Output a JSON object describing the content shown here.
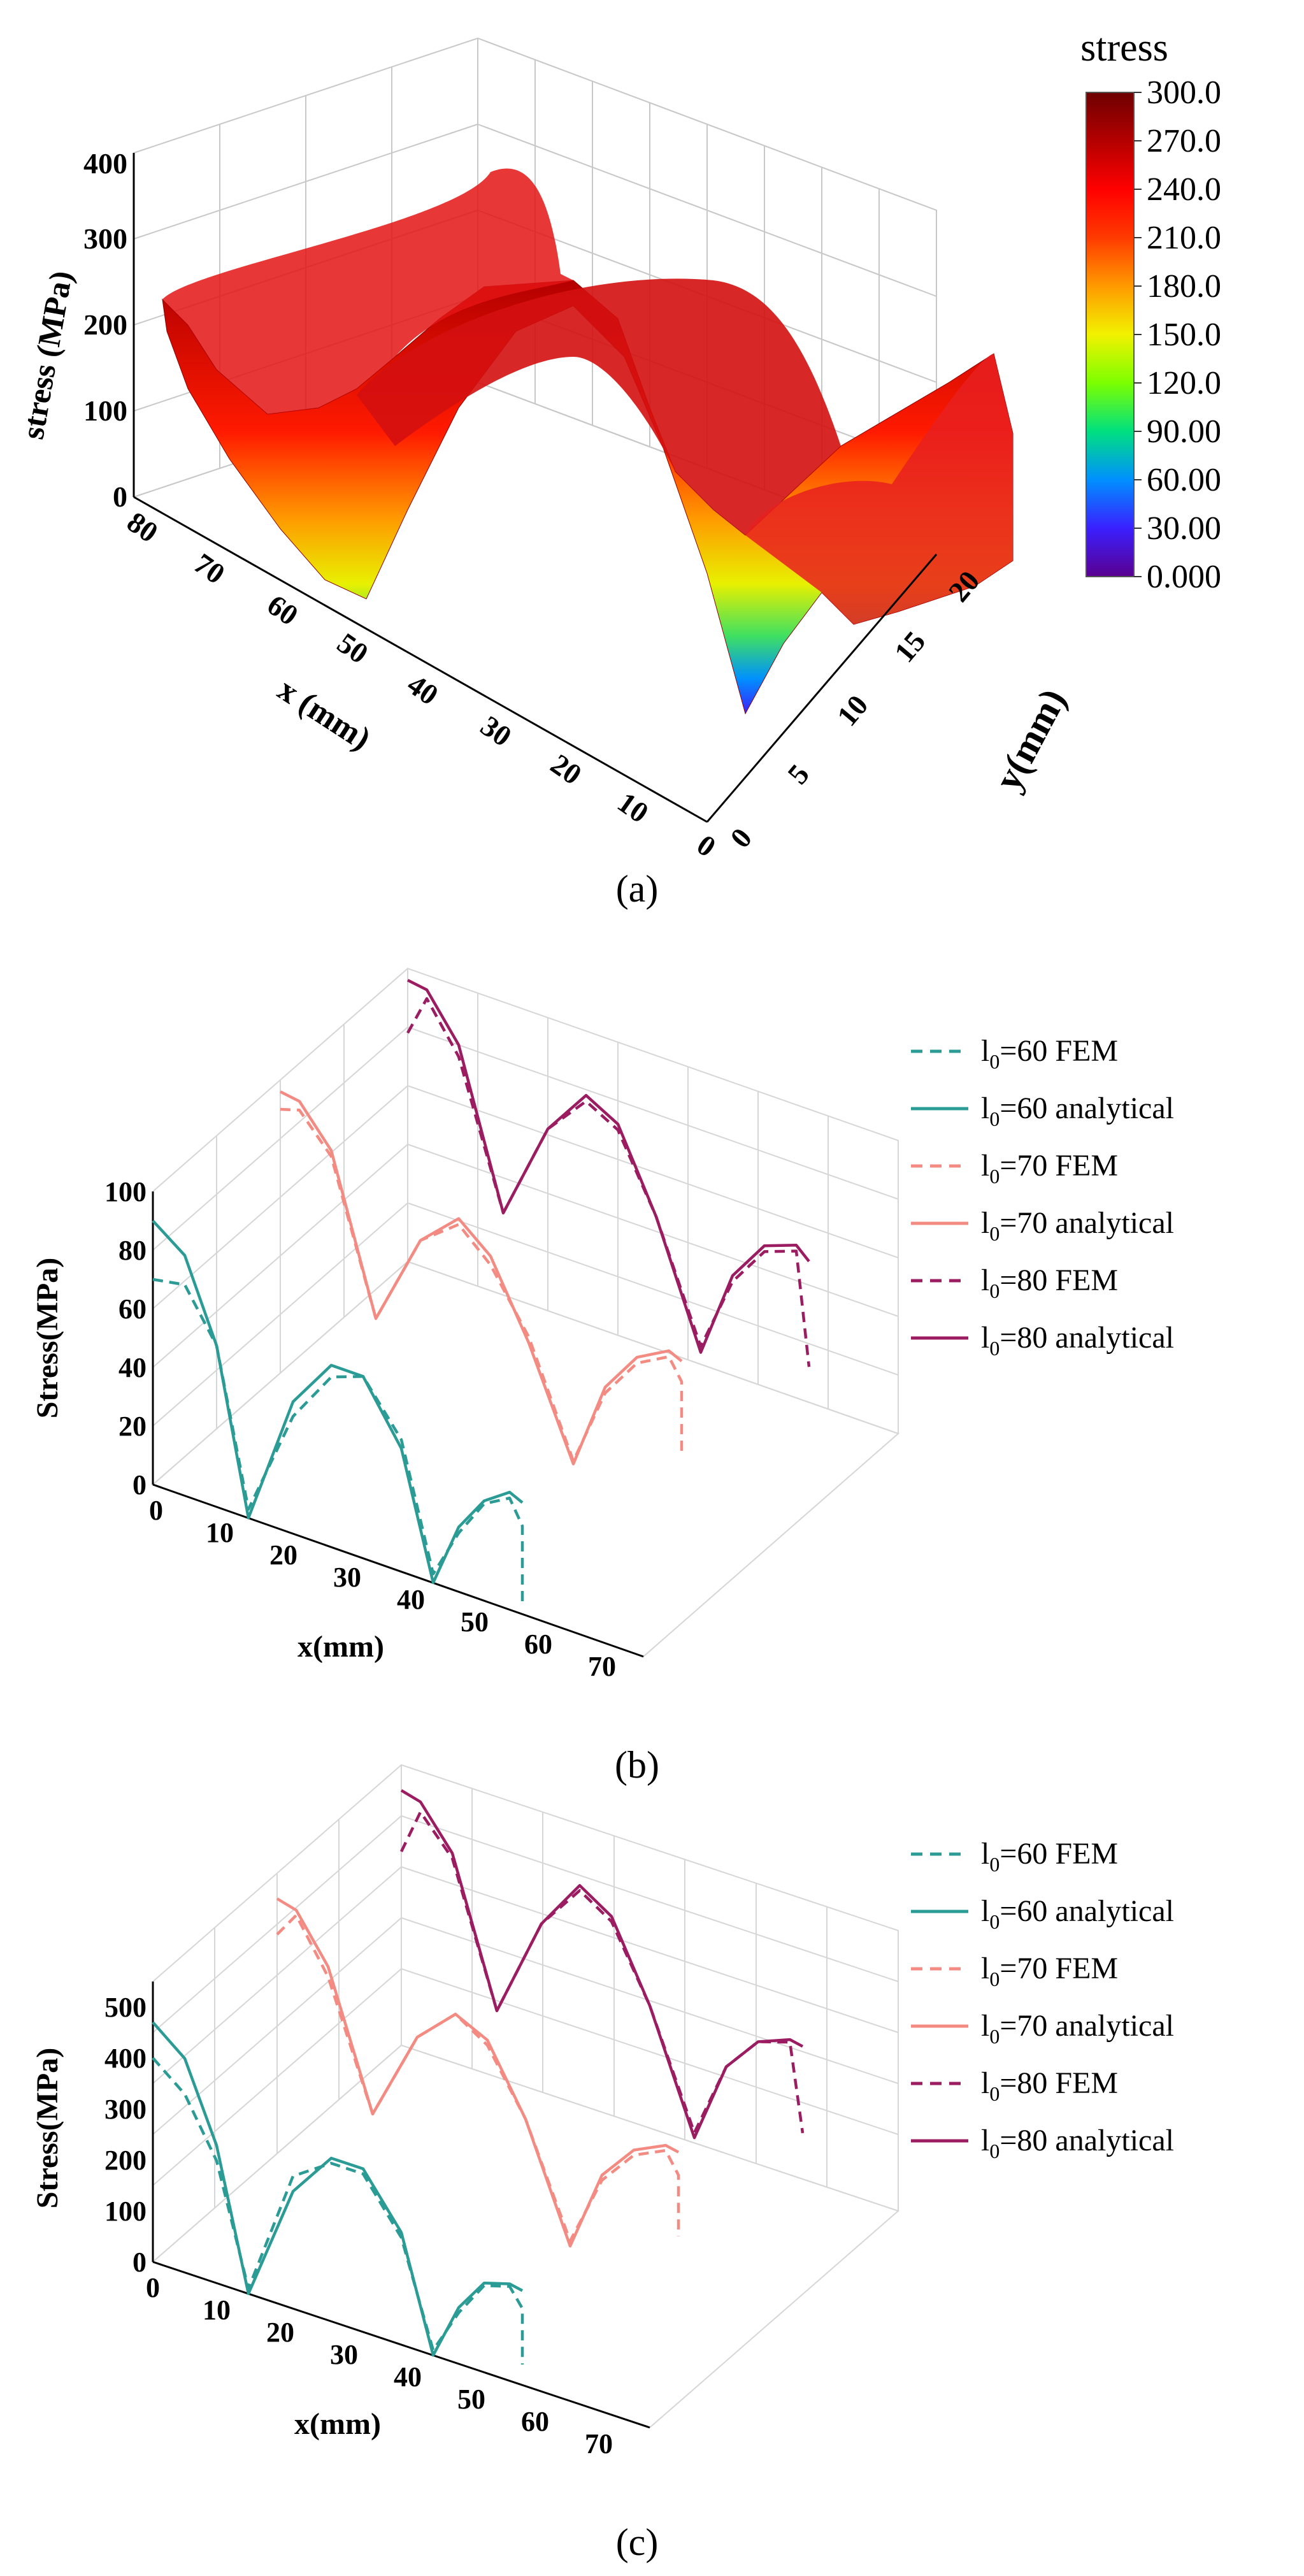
{
  "chart_data": [
    {
      "panel": "a",
      "type": "surface3d",
      "caption": "(a)",
      "zlabel": "stress (MPa)",
      "xlabel": "x (mm)",
      "ylabel": "y(mm)",
      "x_ticks": [
        "80",
        "70",
        "60",
        "50",
        "40",
        "30",
        "20",
        "10",
        "0"
      ],
      "y_ticks": [
        "0",
        "5",
        "10",
        "15",
        "20"
      ],
      "z_ticks": [
        "0",
        "100",
        "200",
        "300",
        "400"
      ],
      "xlim": [
        0,
        80
      ],
      "ylim": [
        0,
        20
      ],
      "zlim": [
        0,
        400
      ],
      "colorbar": {
        "title": "stress",
        "labels": [
          "300.0",
          "270.0",
          "240.0",
          "210.0",
          "180.0",
          "150.0",
          "120.0",
          "90.00",
          "60.00",
          "30.00",
          "0.000"
        ],
        "colors": [
          "#6e0000",
          "#b40000",
          "#ff0000",
          "#ff3a00",
          "#ff9a00",
          "#f2f200",
          "#7cff00",
          "#00e080",
          "#0090ff",
          "#3a20ff",
          "#5a0090"
        ]
      },
      "profile_x": [
        0,
        2,
        5,
        10,
        15,
        20,
        25,
        30,
        35,
        40,
        45,
        50,
        55,
        60,
        62,
        65,
        68,
        71,
        74,
        77,
        80
      ],
      "profile_stress": [
        140,
        150,
        175,
        230,
        250,
        255,
        230,
        150,
        30,
        150,
        265,
        300,
        290,
        230,
        120,
        30,
        180,
        245,
        255,
        245,
        225
      ]
    },
    {
      "panel": "b",
      "type": "line3d",
      "caption": "(b)",
      "ylabel": "Stress(MPa)",
      "xlabel": "x(mm)",
      "x_ticks": [
        "0",
        "10",
        "20",
        "30",
        "40",
        "50",
        "60",
        "70"
      ],
      "y_ticks": [
        "0",
        "20",
        "40",
        "60",
        "80",
        "100"
      ],
      "ylim": [
        0,
        100
      ],
      "series": [
        {
          "name": "l0=60 FEM",
          "sub": "0",
          "pre": "l",
          "post": "=60 FEM",
          "color": "#2a9b95",
          "dash": true,
          "x": [
            0,
            5,
            10,
            15,
            22,
            28,
            33,
            39,
            44,
            48,
            52,
            56,
            58,
            58
          ],
          "values": [
            70,
            72,
            55,
            3,
            40,
            58,
            62,
            45,
            3,
            20,
            33,
            38,
            30,
            4
          ]
        },
        {
          "name": "l0=60 analytical",
          "sub": "0",
          "pre": "l",
          "post": "=60 analytical",
          "color": "#2a9b95",
          "dash": false,
          "x": [
            0,
            5,
            10,
            15,
            22,
            28,
            33,
            39,
            44,
            48,
            52,
            56,
            58
          ],
          "values": [
            90,
            82,
            55,
            0,
            45,
            62,
            62,
            42,
            0,
            22,
            34,
            40,
            38
          ]
        },
        {
          "name": "l0=70 FEM",
          "sub": "0",
          "pre": "l",
          "post": "=70 FEM",
          "color": "#f38b82",
          "dash": true,
          "x": [
            0,
            3,
            8,
            15,
            22,
            28,
            33,
            39,
            46,
            51,
            56,
            61,
            63,
            63
          ],
          "values": [
            90,
            92,
            80,
            30,
            62,
            72,
            62,
            42,
            5,
            32,
            46,
            52,
            45,
            20
          ]
        },
        {
          "name": "l0=70 analytical",
          "sub": "0",
          "pre": "l",
          "post": "=70 analytical",
          "color": "#f38b82",
          "dash": false,
          "x": [
            0,
            3,
            8,
            15,
            22,
            28,
            33,
            39,
            46,
            51,
            56,
            61,
            63
          ],
          "values": [
            96,
            95,
            82,
            30,
            62,
            74,
            65,
            40,
            4,
            34,
            48,
            54,
            52
          ]
        },
        {
          "name": "l0=80 FEM",
          "sub": "0",
          "pre": "l",
          "post": "=80 FEM",
          "color": "#9c1c62",
          "dash": true,
          "x": [
            0,
            3,
            8,
            15,
            22,
            28,
            33,
            39,
            46,
            51,
            56,
            61,
            63
          ],
          "values": [
            78,
            92,
            76,
            28,
            62,
            76,
            70,
            45,
            6,
            32,
            46,
            50,
            12
          ]
        },
        {
          "name": "l0=80 analytical",
          "sub": "0",
          "pre": "l",
          "post": "=80 analytical",
          "color": "#9c1c62",
          "dash": false,
          "x": [
            0,
            3,
            8,
            15,
            22,
            28,
            33,
            39,
            46,
            51,
            56,
            61,
            63
          ],
          "values": [
            96,
            95,
            80,
            28,
            62,
            78,
            72,
            45,
            4,
            34,
            48,
            52,
            48
          ]
        }
      ]
    },
    {
      "panel": "c",
      "type": "line3d",
      "caption": "(c)",
      "ylabel": "Stress(MPa)",
      "xlabel": "x(mm)",
      "x_ticks": [
        "0",
        "10",
        "20",
        "30",
        "40",
        "50",
        "60",
        "70"
      ],
      "y_ticks": [
        "0",
        "100",
        "200",
        "300",
        "400",
        "500"
      ],
      "ylim": [
        0,
        550
      ],
      "series": [
        {
          "name": "l0=60 FEM",
          "sub": "0",
          "pre": "l",
          "post": "=60 FEM",
          "color": "#2a9b95",
          "dash": true,
          "x": [
            0,
            5,
            10,
            15,
            22,
            28,
            33,
            39,
            44,
            48,
            52,
            56,
            58,
            58
          ],
          "values": [
            400,
            350,
            240,
            10,
            260,
            310,
            310,
            210,
            10,
            100,
            170,
            185,
            150,
            40
          ]
        },
        {
          "name": "l0=60 analytical",
          "sub": "0",
          "pre": "l",
          "post": "=60 analytical",
          "color": "#2a9b95",
          "dash": false,
          "x": [
            0,
            5,
            10,
            15,
            22,
            28,
            33,
            39,
            44,
            48,
            52,
            56,
            58
          ],
          "values": [
            470,
            420,
            270,
            0,
            230,
            320,
            320,
            220,
            0,
            110,
            175,
            190,
            185
          ]
        },
        {
          "name": "l0=70 FEM",
          "sub": "0",
          "pre": "l",
          "post": "=70 FEM",
          "color": "#f38b82",
          "dash": true,
          "x": [
            0,
            3,
            8,
            15,
            22,
            28,
            33,
            39,
            46,
            51,
            56,
            61,
            63,
            63
          ],
          "values": [
            430,
            480,
            380,
            140,
            320,
            390,
            350,
            230,
            20,
            160,
            230,
            260,
            220,
            100
          ]
        },
        {
          "name": "l0=70 analytical",
          "sub": "0",
          "pre": "l",
          "post": "=70 analytical",
          "color": "#f38b82",
          "dash": false,
          "x": [
            0,
            3,
            8,
            15,
            22,
            28,
            33,
            39,
            46,
            51,
            56,
            61,
            63
          ],
          "values": [
            500,
            490,
            400,
            140,
            320,
            390,
            360,
            230,
            10,
            170,
            240,
            270,
            265
          ]
        },
        {
          "name": "l0=80 FEM",
          "sub": "0",
          "pre": "l",
          "post": "=80 FEM",
          "color": "#9c1c62",
          "dash": true,
          "x": [
            0,
            3,
            8,
            15,
            22,
            28,
            33,
            39,
            46,
            51,
            56,
            61,
            63
          ],
          "values": [
            380,
            470,
            400,
            130,
            330,
            420,
            380,
            240,
            20,
            170,
            240,
            260,
            90
          ]
        },
        {
          "name": "l0=80 analytical",
          "sub": "0",
          "pre": "l",
          "post": "=80 analytical",
          "color": "#9c1c62",
          "dash": false,
          "x": [
            0,
            3,
            8,
            15,
            22,
            28,
            33,
            39,
            46,
            51,
            56,
            61,
            63
          ],
          "values": [
            500,
            490,
            410,
            130,
            330,
            430,
            390,
            240,
            10,
            170,
            240,
            265,
            260
          ]
        }
      ]
    }
  ]
}
